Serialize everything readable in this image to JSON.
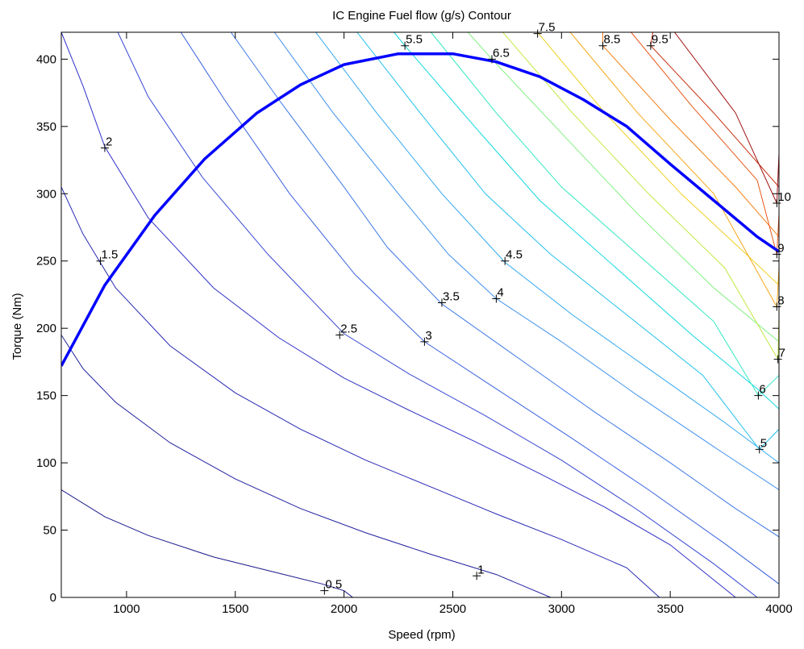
{
  "chart_data": {
    "type": "line",
    "title": "IC Engine Fuel flow (g/s) Contour",
    "xlabel": "Speed (rpm)",
    "ylabel": "Torque (Nm)",
    "xlim": [
      700,
      4000
    ],
    "ylim": [
      0,
      420
    ],
    "x_ticks": [
      "1000",
      "1500",
      "2000",
      "2500",
      "3000",
      "3500",
      "4000"
    ],
    "y_ticks": [
      "0",
      "50",
      "100",
      "150",
      "200",
      "250",
      "300",
      "350",
      "400"
    ],
    "grid": false,
    "max_torque_curve": {
      "color": "#0000ff",
      "points": [
        [
          700,
          172
        ],
        [
          900,
          232
        ],
        [
          1130,
          284
        ],
        [
          1360,
          326
        ],
        [
          1600,
          360
        ],
        [
          1800,
          381
        ],
        [
          2000,
          396
        ],
        [
          2250,
          404
        ],
        [
          2500,
          404
        ],
        [
          2700,
          398
        ],
        [
          2900,
          387
        ],
        [
          3100,
          370
        ],
        [
          3300,
          350
        ],
        [
          3500,
          322
        ],
        [
          3700,
          295
        ],
        [
          3900,
          268
        ],
        [
          4000,
          257
        ]
      ]
    },
    "contours": [
      {
        "level": "0.5",
        "color": "#1a1a8c",
        "points": [
          [
            700,
            80
          ],
          [
            900,
            60
          ],
          [
            1100,
            46
          ],
          [
            1400,
            30
          ],
          [
            1700,
            18
          ],
          [
            1900,
            10
          ],
          [
            2000,
            5
          ],
          [
            2040,
            0
          ]
        ]
      },
      {
        "level": "1",
        "color": "#2020a0",
        "points": [
          [
            700,
            195
          ],
          [
            800,
            170
          ],
          [
            950,
            145
          ],
          [
            1200,
            115
          ],
          [
            1500,
            88
          ],
          [
            1800,
            66
          ],
          [
            2100,
            48
          ],
          [
            2400,
            32
          ],
          [
            2700,
            17
          ],
          [
            2950,
            0
          ]
        ]
      },
      {
        "level": "1.5",
        "color": "#2828b4",
        "points": [
          [
            700,
            305
          ],
          [
            800,
            270
          ],
          [
            950,
            230
          ],
          [
            1200,
            187
          ],
          [
            1500,
            152
          ],
          [
            1800,
            125
          ],
          [
            2100,
            102
          ],
          [
            2400,
            82
          ],
          [
            2700,
            62
          ],
          [
            3000,
            43
          ],
          [
            3300,
            22
          ],
          [
            3450,
            0
          ]
        ]
      },
      {
        "level": "2",
        "color": "#3030c8",
        "points": [
          [
            700,
            420
          ],
          [
            800,
            380
          ],
          [
            900,
            335
          ],
          [
            1100,
            282
          ],
          [
            1400,
            230
          ],
          [
            1700,
            193
          ],
          [
            2000,
            163
          ],
          [
            2300,
            139
          ],
          [
            2600,
            116
          ],
          [
            2900,
            92
          ],
          [
            3200,
            67
          ],
          [
            3500,
            39
          ],
          [
            3800,
            0
          ]
        ]
      },
      {
        "level": "2.5",
        "color": "#3848d4",
        "points": [
          [
            960,
            420
          ],
          [
            1100,
            372
          ],
          [
            1350,
            312
          ],
          [
            1650,
            255
          ],
          [
            2000,
            196
          ],
          [
            2300,
            166
          ],
          [
            2650,
            135
          ],
          [
            3000,
            102
          ],
          [
            3350,
            65
          ],
          [
            3700,
            25
          ],
          [
            3900,
            0
          ]
        ]
      },
      {
        "level": "3",
        "color": "#3a60e0",
        "points": [
          [
            1250,
            420
          ],
          [
            1450,
            370
          ],
          [
            1750,
            300
          ],
          [
            2050,
            240
          ],
          [
            2370,
            190
          ],
          [
            2700,
            155
          ],
          [
            3050,
            118
          ],
          [
            3400,
            80
          ],
          [
            3750,
            40
          ],
          [
            4000,
            10
          ]
        ]
      },
      {
        "level": "3.5",
        "color": "#3c78e8",
        "points": [
          [
            1480,
            420
          ],
          [
            1700,
            370
          ],
          [
            2000,
            305
          ],
          [
            2200,
            260
          ],
          [
            2450,
            218
          ],
          [
            2800,
            178
          ],
          [
            3150,
            138
          ],
          [
            3500,
            100
          ],
          [
            3800,
            66
          ],
          [
            4000,
            45
          ]
        ]
      },
      {
        "level": "4",
        "color": "#3c90ee",
        "points": [
          [
            1680,
            420
          ],
          [
            1950,
            360
          ],
          [
            2250,
            300
          ],
          [
            2480,
            255
          ],
          [
            2700,
            222
          ],
          [
            3000,
            190
          ],
          [
            3350,
            150
          ],
          [
            3700,
            112
          ],
          [
            4000,
            80
          ]
        ]
      },
      {
        "level": "4.5",
        "color": "#30a8f0",
        "points": [
          [
            1870,
            420
          ],
          [
            2150,
            360
          ],
          [
            2450,
            300
          ],
          [
            2740,
            249
          ],
          [
            3050,
            210
          ],
          [
            3400,
            170
          ],
          [
            3750,
            130
          ],
          [
            4000,
            100
          ]
        ]
      },
      {
        "level": "5",
        "color": "#20c0ec",
        "points": [
          [
            2060,
            420
          ],
          [
            2350,
            360
          ],
          [
            2650,
            300
          ],
          [
            2950,
            255
          ],
          [
            3300,
            210
          ],
          [
            3650,
            165
          ],
          [
            3910,
            110
          ],
          [
            4000,
            125
          ]
        ]
      },
      {
        "level": "5.5",
        "color": "#10d8e0",
        "points": [
          [
            2230,
            420
          ],
          [
            2280,
            410
          ],
          [
            2600,
            350
          ],
          [
            2900,
            295
          ],
          [
            3250,
            245
          ],
          [
            3600,
            195
          ],
          [
            3900,
            155
          ],
          [
            4000,
            140
          ]
        ]
      },
      {
        "level": "6",
        "color": "#30e8c0",
        "points": [
          [
            2400,
            420
          ],
          [
            2700,
            360
          ],
          [
            3000,
            305
          ],
          [
            3350,
            255
          ],
          [
            3700,
            205
          ],
          [
            3905,
            150
          ],
          [
            4000,
            165
          ]
        ]
      },
      {
        "level": "6.5",
        "color": "#80f080",
        "points": [
          [
            2570,
            420
          ],
          [
            2680,
            400
          ],
          [
            3000,
            345
          ],
          [
            3350,
            285
          ],
          [
            3700,
            230
          ],
          [
            4000,
            190
          ]
        ]
      },
      {
        "level": "7",
        "color": "#c0e840",
        "points": [
          [
            2730,
            420
          ],
          [
            3050,
            360
          ],
          [
            3400,
            300
          ],
          [
            3750,
            245
          ],
          [
            3995,
            177
          ],
          [
            4000,
            210
          ]
        ]
      },
      {
        "level": "7.5",
        "color": "#f0d020",
        "points": [
          [
            2890,
            420
          ],
          [
            3200,
            360
          ],
          [
            3550,
            300
          ],
          [
            3850,
            255
          ],
          [
            4000,
            232
          ]
        ]
      },
      {
        "level": "8",
        "color": "#f8a818",
        "points": [
          [
            3040,
            420
          ],
          [
            3350,
            360
          ],
          [
            3700,
            300
          ],
          [
            3990,
            216
          ],
          [
            4000,
            245
          ]
        ]
      },
      {
        "level": "8.5",
        "color": "#f48018",
        "points": [
          [
            3190,
            420
          ],
          [
            3190,
            410
          ],
          [
            3500,
            355
          ],
          [
            3800,
            305
          ],
          [
            4000,
            268
          ]
        ]
      },
      {
        "level": "9",
        "color": "#e85818",
        "points": [
          [
            3320,
            420
          ],
          [
            3600,
            365
          ],
          [
            3900,
            310
          ],
          [
            3990,
            255
          ],
          [
            4000,
            285
          ]
        ]
      },
      {
        "level": "9.5",
        "color": "#c83010",
        "points": [
          [
            3420,
            420
          ],
          [
            3410,
            410
          ],
          [
            3700,
            360
          ],
          [
            4000,
            305
          ]
        ]
      },
      {
        "level": "10",
        "color": "#a01010",
        "points": [
          [
            3520,
            420
          ],
          [
            3800,
            360
          ],
          [
            3990,
            293
          ],
          [
            4000,
            330
          ]
        ]
      }
    ],
    "labels": [
      {
        "text": "0.5",
        "x": 1910,
        "y": 5
      },
      {
        "text": "1",
        "x": 2610,
        "y": 16
      },
      {
        "text": "1.5",
        "x": 880,
        "y": 250
      },
      {
        "text": "2",
        "x": 900,
        "y": 334
      },
      {
        "text": "2.5",
        "x": 1980,
        "y": 195
      },
      {
        "text": "3",
        "x": 2370,
        "y": 190
      },
      {
        "text": "3.5",
        "x": 2450,
        "y": 219
      },
      {
        "text": "4",
        "x": 2700,
        "y": 222
      },
      {
        "text": "4.5",
        "x": 2740,
        "y": 250
      },
      {
        "text": "5",
        "x": 3910,
        "y": 110
      },
      {
        "text": "5.5",
        "x": 2280,
        "y": 410
      },
      {
        "text": "6",
        "x": 3905,
        "y": 150
      },
      {
        "text": "6.5",
        "x": 2680,
        "y": 400
      },
      {
        "text": "7",
        "x": 3995,
        "y": 177
      },
      {
        "text": "7.5",
        "x": 2890,
        "y": 419
      },
      {
        "text": "8",
        "x": 3990,
        "y": 216
      },
      {
        "text": "8.5",
        "x": 3190,
        "y": 410
      },
      {
        "text": "9",
        "x": 3990,
        "y": 255
      },
      {
        "text": "9.5",
        "x": 3410,
        "y": 410
      },
      {
        "text": "10",
        "x": 3990,
        "y": 293
      }
    ]
  }
}
